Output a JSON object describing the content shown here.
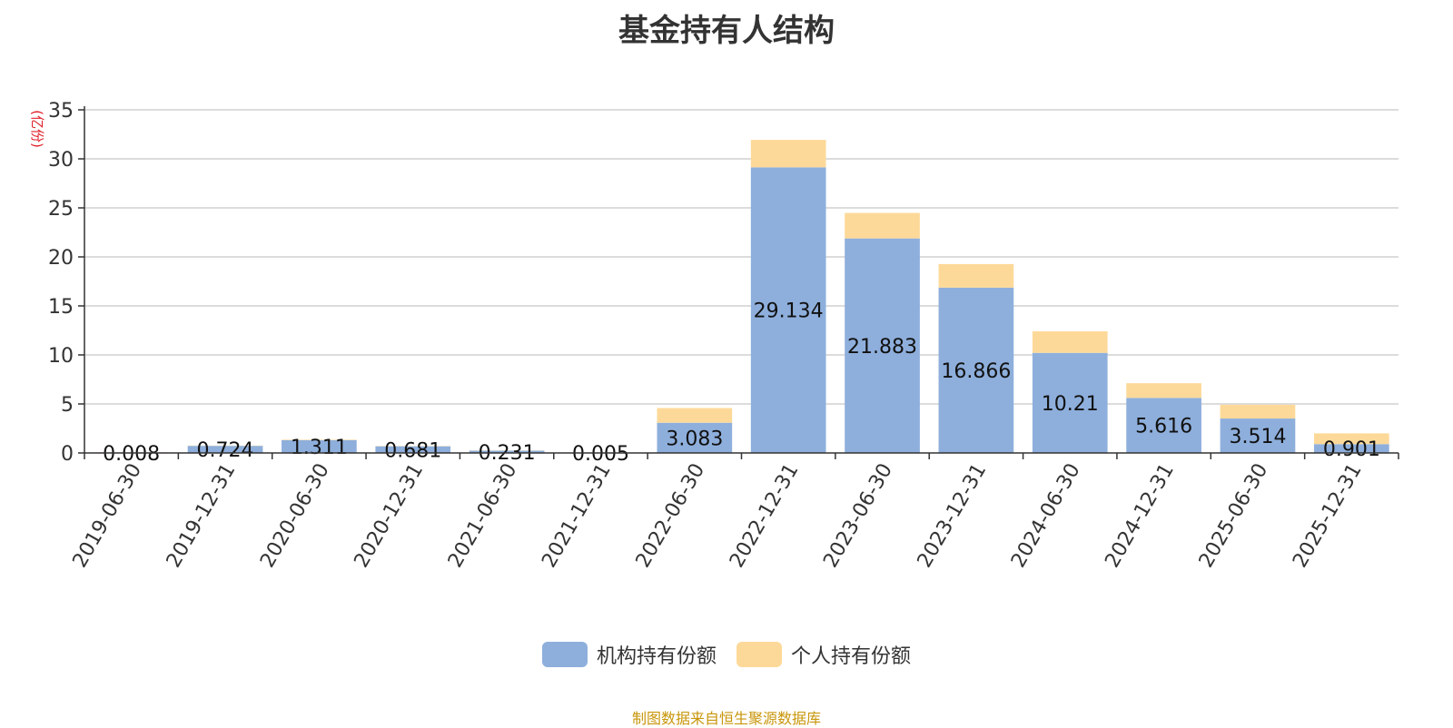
{
  "chart_data": {
    "type": "bar",
    "stacked": true,
    "title": "基金持有人结构",
    "ylabel": "(亿份)",
    "ylim": [
      0,
      35
    ],
    "yticks": [
      0,
      5,
      10,
      15,
      20,
      25,
      30,
      35
    ],
    "grid": true,
    "legend_position": "bottom",
    "categories": [
      "2019-06-30",
      "2019-12-31",
      "2020-06-30",
      "2020-12-31",
      "2021-06-30",
      "2021-12-31",
      "2022-06-30",
      "2022-12-31",
      "2023-06-30",
      "2023-12-31",
      "2024-06-30",
      "2024-12-31",
      "2025-06-30",
      "2025-12-31"
    ],
    "series": [
      {
        "name": "机构持有份额",
        "color": "#8eafdc",
        "values": [
          0.008,
          0.724,
          1.311,
          0.681,
          0.231,
          0.005,
          3.083,
          29.134,
          21.883,
          16.866,
          10.21,
          5.616,
          3.514,
          0.901
        ],
        "labels": [
          "0.008",
          "0.724",
          "1.311",
          "0.681",
          "0.231",
          "0.005",
          "3.083",
          "29.134",
          "21.883",
          "16.866",
          "10.21",
          "5.616",
          "3.514",
          "0.901"
        ]
      },
      {
        "name": "个人持有份额",
        "color": "#fdd999",
        "values": [
          0.05,
          0.03,
          0.05,
          0.03,
          0.02,
          0.01,
          1.5,
          2.8,
          2.6,
          2.4,
          2.2,
          1.5,
          1.4,
          1.1
        ]
      }
    ],
    "source": "制图数据来自恒生聚源数据库",
    "ylabel_color": "#e0212a",
    "source_color": "#c8960a"
  }
}
